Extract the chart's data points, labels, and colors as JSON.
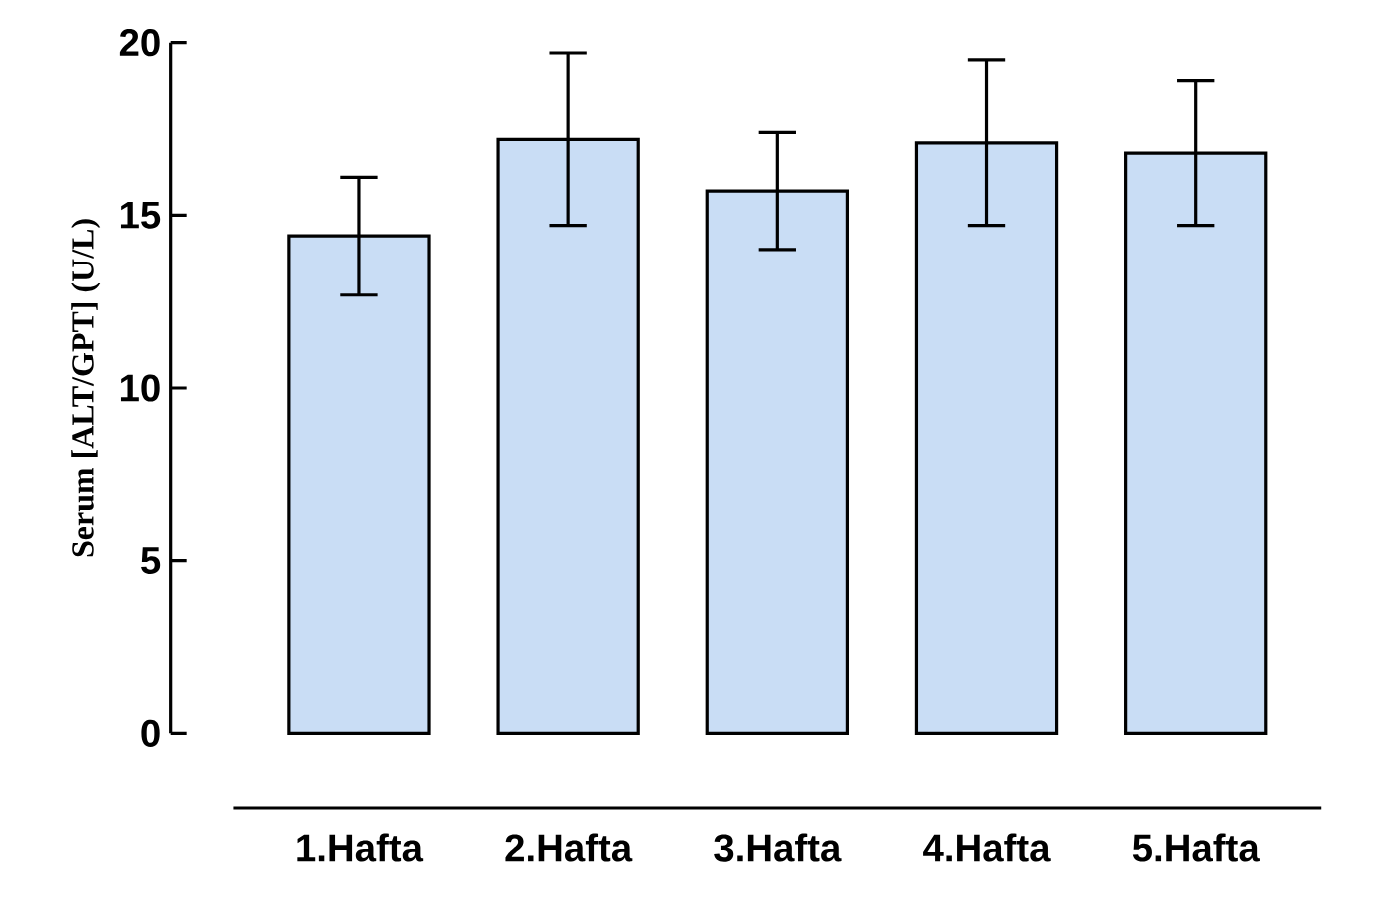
{
  "chart_data": {
    "type": "bar",
    "ylabel": "Serum [ALT/GPT] (U/L)",
    "categories": [
      "1.Hafta",
      "2.Hafta",
      "3.Hafta",
      "4.Hafta",
      "5.Hafta"
    ],
    "values": [
      14.4,
      17.2,
      15.7,
      17.1,
      16.8
    ],
    "errors": [
      1.7,
      2.5,
      1.7,
      2.4,
      2.1
    ],
    "color": "#c9ddf5",
    "ylim": [
      0,
      20
    ],
    "yticks": [
      0,
      5,
      10,
      15,
      20
    ]
  }
}
